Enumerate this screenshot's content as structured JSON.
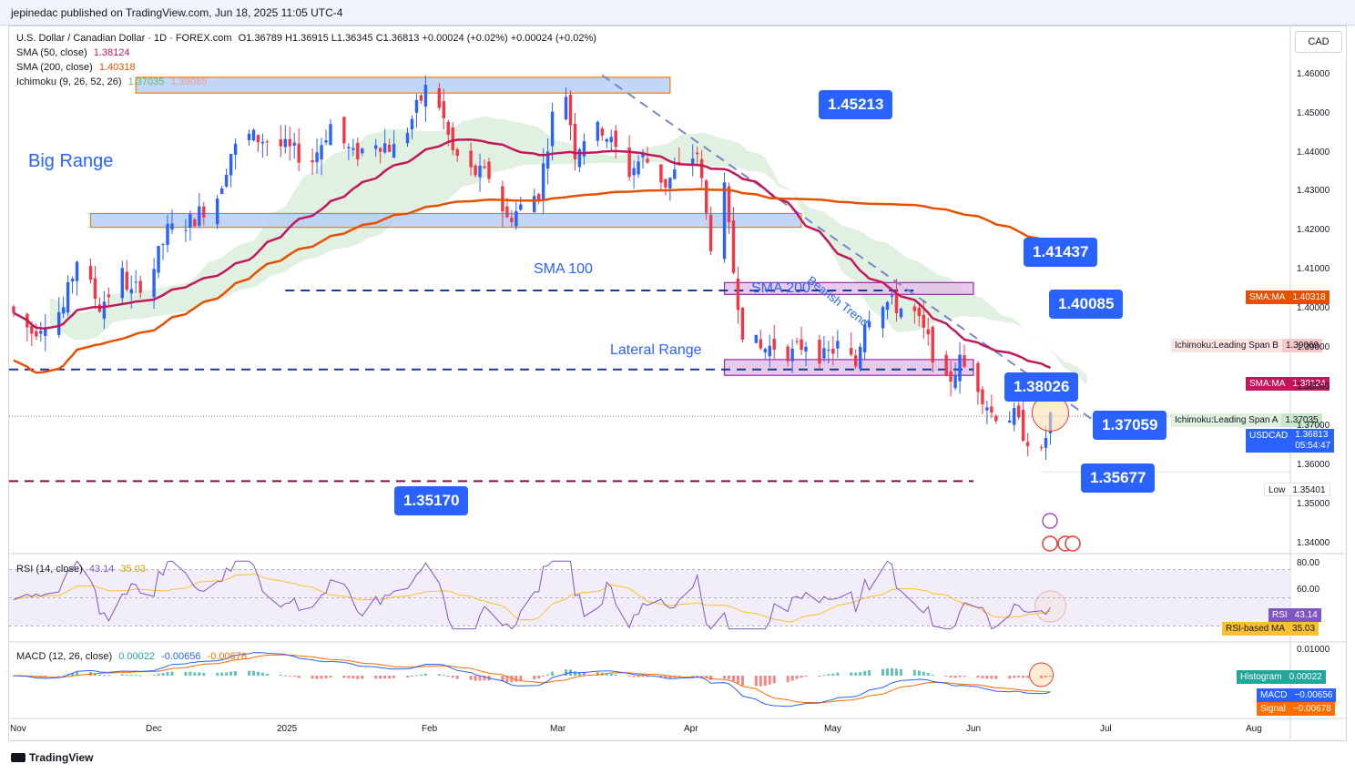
{
  "header": {
    "published": "jepinedac published on TradingView.com, Jun 18, 2025 11:05 UTC-4"
  },
  "legend": {
    "symbol": "U.S. Dollar / Canadian Dollar · 1D · FOREX.com",
    "ohlc": "O1.36789  H1.36915  L1.36345  C1.36813  +0.00024 (+0.02%)  +0.00024 (+0.02%)",
    "sma50_label": "SMA (50, close)",
    "sma50_value": "1.38124",
    "sma200_label": "SMA (200, close)",
    "sma200_value": "1.40318",
    "ichimoku_label": "Ichimoku (9, 26, 52, 26)",
    "ichimoku_a": "1.37035",
    "ichimoku_b": "1.39069",
    "rsi_label": "RSI (14, close)",
    "rsi_value": "43.14",
    "rsi_ma": "35.03",
    "macd_label": "MACD (12, 26, close)",
    "macd_hist": "0.00022",
    "macd_value": "-0.00656",
    "macd_signal": "-0.00678"
  },
  "currency": "CAD",
  "annotations": {
    "big_range": "Big Range",
    "sma100": "SMA 100",
    "sma200": "SMA 200",
    "lateral_range": "Lateral Range",
    "bearish_trend": "Bearish Trend"
  },
  "callouts": {
    "c1": "1.45213",
    "c2": "1.41437",
    "c3": "1.40085",
    "c4": "1.38026",
    "c5": "1.37059",
    "c6": "1.35677",
    "c7": "1.35170"
  },
  "price_tags": {
    "sma200": {
      "name": "SMA:MA",
      "value": "1.40318"
    },
    "span_b": {
      "name": "Ichimoku:Leading Span B",
      "value": "1.39069"
    },
    "sma50": {
      "name": "SMA:MA",
      "value": "1.38124"
    },
    "span_a": {
      "name": "Ichimoku:Leading Span A",
      "value": "1.37035"
    },
    "usdcad": {
      "name": "USDCAD",
      "value": "1.36813",
      "countdown": "05:54:47"
    },
    "low": {
      "name": "Low",
      "value": "1.35401"
    },
    "rsi": {
      "name": "RSI",
      "value": "43.14"
    },
    "rsi_ma": {
      "name": "RSI-based MA",
      "value": "35.03"
    },
    "hist": {
      "name": "Histogram",
      "value": "0.00022"
    },
    "macd": {
      "name": "MACD",
      "value": "−0.00656"
    },
    "signal": {
      "name": "Signal",
      "value": "−0.00678"
    }
  },
  "brand": "TradingView",
  "colors": {
    "up": "#2962ff",
    "down": "#f23645",
    "sma50": "#c2185b",
    "sma200": "#e65100",
    "cloud_bull": "#c8e6c9",
    "cloud_bear": "#f8c8c8",
    "range_box": "#b3cdf5",
    "lateral_box": "#e1bee7",
    "rsi": "#7e57c2",
    "rsi_ma": "#fbc02d",
    "macd": "#2962ff",
    "signal": "#ff6d00"
  },
  "chart_data": {
    "type": "candlestick",
    "symbol": "USDCAD",
    "interval": "1D",
    "ylim": [
      1.3345,
      1.4655
    ],
    "y_ticks": [
      "1.46000",
      "1.45000",
      "1.44000",
      "1.43000",
      "1.42000",
      "1.41000",
      "1.40000",
      "1.39000",
      "1.38000",
      "1.37000",
      "1.36000",
      "1.35000",
      "1.34000"
    ],
    "x_ticks": [
      "Nov",
      "Dec",
      "2025",
      "Feb",
      "Mar",
      "Apr",
      "May",
      "Jun",
      "Jul",
      "Aug"
    ],
    "close_path": [
      [
        "2024-11-01",
        1.394
      ],
      [
        "2024-11-05",
        1.3895
      ],
      [
        "2024-11-08",
        1.3925
      ],
      [
        "2024-11-12",
        1.3955
      ],
      [
        "2024-11-15",
        1.408
      ],
      [
        "2024-11-20",
        1.396
      ],
      [
        "2024-11-25",
        1.404
      ],
      [
        "2024-11-27",
        1.399
      ],
      [
        "2024-12-02",
        1.406
      ],
      [
        "2024-12-05",
        1.415
      ],
      [
        "2024-12-10",
        1.4175
      ],
      [
        "2024-12-16",
        1.424
      ],
      [
        "2024-12-19",
        1.435
      ],
      [
        "2024-12-23",
        1.439
      ],
      [
        "2024-12-27",
        1.438
      ],
      [
        "2024-12-31",
        1.436
      ],
      [
        "2025-01-06",
        1.433
      ],
      [
        "2025-01-10",
        1.442
      ],
      [
        "2025-01-15",
        1.434
      ],
      [
        "2025-01-20",
        1.438
      ],
      [
        "2025-01-24",
        1.436
      ],
      [
        "2025-01-27",
        1.441
      ],
      [
        "2025-01-31",
        1.451
      ],
      [
        "2025-02-03",
        1.447
      ],
      [
        "2025-02-06",
        1.435
      ],
      [
        "2025-02-10",
        1.43
      ],
      [
        "2025-02-14",
        1.429
      ],
      [
        "2025-02-18",
        1.418
      ],
      [
        "2025-02-21",
        1.421
      ],
      [
        "2025-02-25",
        1.425
      ],
      [
        "2025-02-28",
        1.444
      ],
      [
        "2025-03-03",
        1.45
      ],
      [
        "2025-03-05",
        1.435
      ],
      [
        "2025-03-07",
        1.439
      ],
      [
        "2025-03-11",
        1.441
      ],
      [
        "2025-03-17",
        1.43
      ],
      [
        "2025-03-20",
        1.434
      ],
      [
        "2025-03-25",
        1.427
      ],
      [
        "2025-03-28",
        1.431
      ],
      [
        "2025-04-01",
        1.435
      ],
      [
        "2025-04-03",
        1.419
      ],
      [
        "2025-04-04",
        1.412
      ],
      [
        "2025-04-07",
        1.425
      ],
      [
        "2025-04-09",
        1.405
      ],
      [
        "2025-04-11",
        1.39
      ],
      [
        "2025-04-15",
        1.385
      ],
      [
        "2025-04-18",
        1.386
      ],
      [
        "2025-04-22",
        1.384
      ],
      [
        "2025-04-25",
        1.387
      ],
      [
        "2025-04-29",
        1.383
      ],
      [
        "2025-05-02",
        1.386
      ],
      [
        "2025-05-06",
        1.381
      ],
      [
        "2025-05-08",
        1.393
      ],
      [
        "2025-05-12",
        1.3975
      ],
      [
        "2025-05-15",
        1.396
      ],
      [
        "2025-05-19",
        1.394
      ],
      [
        "2025-05-22",
        1.387
      ],
      [
        "2025-05-26",
        1.376
      ],
      [
        "2025-05-29",
        1.382
      ],
      [
        "2025-06-02",
        1.376
      ],
      [
        "2025-06-05",
        1.369
      ],
      [
        "2025-06-10",
        1.368
      ],
      [
        "2025-06-12",
        1.364
      ],
      [
        "2025-06-16",
        1.358
      ],
      [
        "2025-06-18",
        1.36813
      ]
    ],
    "levels": {
      "resistance_1": 1.45213,
      "resistance_2": 1.41437,
      "resistance_3": 1.40085,
      "support_1": 1.38026,
      "support_2": 1.35677,
      "support_3": 1.3517,
      "pivot": 1.37059
    },
    "rsi": {
      "ylim": [
        20,
        80
      ],
      "ticks": [
        "80.00",
        "60.00"
      ],
      "current": 43.14,
      "ma": 35.03,
      "bands": [
        70,
        30
      ]
    },
    "macd": {
      "ticks": [
        "0.01000"
      ],
      "histogram": 0.00022,
      "macd": -0.00656,
      "signal": -0.00678
    }
  }
}
